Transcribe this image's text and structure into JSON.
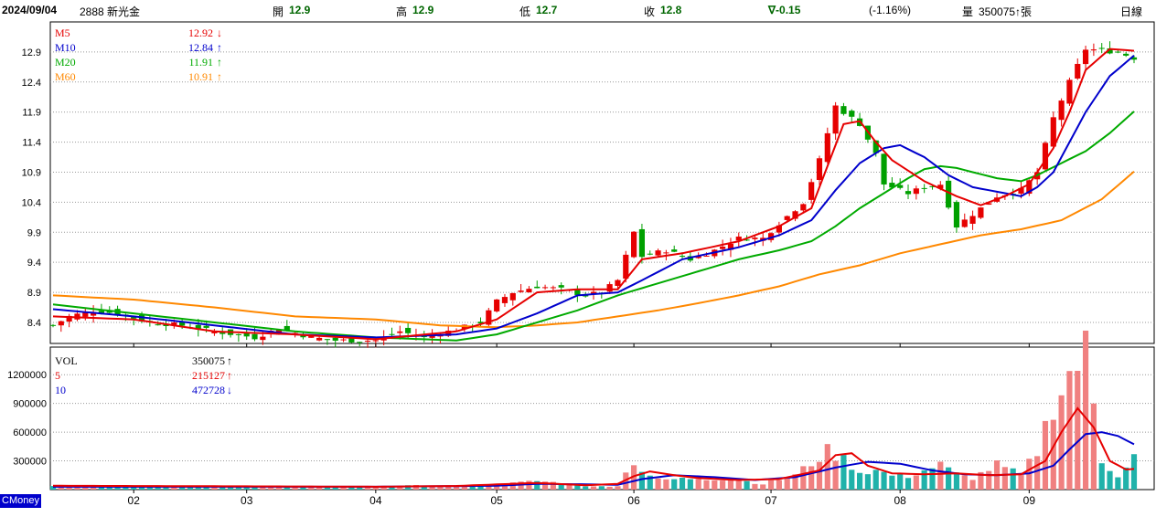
{
  "header": {
    "date": "2024/09/04",
    "stock": "2888 新光金",
    "open_label": "開",
    "open": "12.9",
    "high_label": "高",
    "high": "12.9",
    "low_label": "低",
    "low": "12.7",
    "close_label": "收",
    "close": "12.8",
    "change": "∇-0.15",
    "change_pct": "(-1.16%)",
    "volume_label": "量",
    "volume": "350075↑張",
    "period": "日線"
  },
  "badge": "CMoney",
  "colors": {
    "up": "#e60000",
    "down": "#00a000",
    "ma5": "#e60000",
    "ma10": "#0000cc",
    "ma20": "#00aa00",
    "ma60": "#ff8800",
    "vol_up": "#f08080",
    "vol_down": "#20b2aa"
  },
  "chart_data": {
    "type": "candlestick",
    "price_ticks": [
      "12.9",
      "12.4",
      "11.9",
      "11.4",
      "10.9",
      "10.4",
      "9.9",
      "9.4",
      "8.9",
      "8.4"
    ],
    "price_tick_values": [
      12.9,
      12.4,
      11.9,
      11.4,
      10.9,
      10.4,
      9.9,
      9.4,
      8.9,
      8.4
    ],
    "volume_ticks": [
      "1200000",
      "900000",
      "600000",
      "300000"
    ],
    "volume_tick_values": [
      1200000,
      900000,
      600000,
      300000
    ],
    "month_labels": [
      "02",
      "03",
      "04",
      "05",
      "06",
      "07",
      "08",
      "09"
    ],
    "month_start_index": [
      10,
      24,
      40,
      55,
      72,
      89,
      105,
      121
    ],
    "ma_legend": [
      {
        "name": "M5",
        "value": "12.92",
        "arrow": "↓"
      },
      {
        "name": "M10",
        "value": "12.84",
        "arrow": "↑"
      },
      {
        "name": "M20",
        "value": "11.91",
        "arrow": "↑"
      },
      {
        "name": "M60",
        "value": "10.91",
        "arrow": "↑"
      }
    ],
    "vol_legend": [
      {
        "name": "VOL",
        "value": "350075",
        "arrow": "↑"
      },
      {
        "name": "5",
        "value": "215127",
        "arrow": "↑"
      },
      {
        "name": "10",
        "value": "472728",
        "arrow": "↓"
      }
    ],
    "close_anchors": [
      [
        0,
        8.35
      ],
      [
        2,
        8.5
      ],
      [
        5,
        8.6
      ],
      [
        8,
        8.55
      ],
      [
        12,
        8.4
      ],
      [
        16,
        8.35
      ],
      [
        20,
        8.25
      ],
      [
        25,
        8.15
      ],
      [
        28,
        8.3
      ],
      [
        32,
        8.15
      ],
      [
        35,
        8.1
      ],
      [
        40,
        8.1
      ],
      [
        43,
        8.25
      ],
      [
        46,
        8.15
      ],
      [
        49,
        8.25
      ],
      [
        53,
        8.4
      ],
      [
        55,
        8.75
      ],
      [
        57,
        8.9
      ],
      [
        60,
        9.0
      ],
      [
        63,
        8.95
      ],
      [
        66,
        8.85
      ],
      [
        68,
        8.9
      ],
      [
        70,
        9.1
      ],
      [
        71,
        9.5
      ],
      [
        72,
        9.9
      ],
      [
        73,
        9.5
      ],
      [
        76,
        9.6
      ],
      [
        79,
        9.45
      ],
      [
        82,
        9.6
      ],
      [
        85,
        9.8
      ],
      [
        88,
        9.8
      ],
      [
        90,
        10.05
      ],
      [
        93,
        10.4
      ],
      [
        95,
        11.1
      ],
      [
        97,
        12.0
      ],
      [
        99,
        11.8
      ],
      [
        100,
        11.7
      ],
      [
        102,
        11.2
      ],
      [
        103,
        10.7
      ],
      [
        106,
        10.55
      ],
      [
        108,
        10.65
      ],
      [
        110,
        10.7
      ],
      [
        112,
        10.0
      ],
      [
        114,
        10.2
      ],
      [
        117,
        10.5
      ],
      [
        120,
        10.6
      ],
      [
        122,
        10.9
      ],
      [
        124,
        11.8
      ],
      [
        126,
        12.4
      ],
      [
        128,
        12.95
      ],
      [
        132,
        12.9
      ],
      [
        134,
        12.8
      ]
    ],
    "ma_anchors": {
      "ma5": [
        [
          0,
          8.5
        ],
        [
          10,
          8.45
        ],
        [
          20,
          8.25
        ],
        [
          30,
          8.2
        ],
        [
          40,
          8.12
        ],
        [
          50,
          8.25
        ],
        [
          55,
          8.45
        ],
        [
          60,
          8.9
        ],
        [
          65,
          8.95
        ],
        [
          70,
          8.95
        ],
        [
          73,
          9.45
        ],
        [
          78,
          9.55
        ],
        [
          85,
          9.75
        ],
        [
          90,
          10.0
        ],
        [
          94,
          10.3
        ],
        [
          96,
          11.0
        ],
        [
          98,
          11.7
        ],
        [
          100,
          11.75
        ],
        [
          102,
          11.4
        ],
        [
          104,
          11.1
        ],
        [
          108,
          10.75
        ],
        [
          112,
          10.5
        ],
        [
          115,
          10.35
        ],
        [
          118,
          10.5
        ],
        [
          121,
          10.7
        ],
        [
          124,
          11.3
        ],
        [
          126,
          11.9
        ],
        [
          128,
          12.6
        ],
        [
          131,
          12.95
        ],
        [
          134,
          12.92
        ]
      ],
      "ma10": [
        [
          0,
          8.62
        ],
        [
          10,
          8.5
        ],
        [
          20,
          8.35
        ],
        [
          30,
          8.2
        ],
        [
          40,
          8.15
        ],
        [
          50,
          8.2
        ],
        [
          55,
          8.3
        ],
        [
          60,
          8.55
        ],
        [
          65,
          8.85
        ],
        [
          70,
          8.9
        ],
        [
          73,
          9.1
        ],
        [
          78,
          9.45
        ],
        [
          85,
          9.65
        ],
        [
          90,
          9.85
        ],
        [
          94,
          10.1
        ],
        [
          97,
          10.6
        ],
        [
          100,
          11.05
        ],
        [
          103,
          11.3
        ],
        [
          105,
          11.35
        ],
        [
          108,
          11.15
        ],
        [
          111,
          10.85
        ],
        [
          114,
          10.65
        ],
        [
          118,
          10.55
        ],
        [
          120,
          10.5
        ],
        [
          122,
          10.65
        ],
        [
          124,
          10.9
        ],
        [
          126,
          11.4
        ],
        [
          128,
          11.9
        ],
        [
          131,
          12.5
        ],
        [
          134,
          12.84
        ]
      ],
      "ma20": [
        [
          0,
          8.7
        ],
        [
          10,
          8.55
        ],
        [
          20,
          8.4
        ],
        [
          30,
          8.25
        ],
        [
          40,
          8.15
        ],
        [
          50,
          8.1
        ],
        [
          55,
          8.2
        ],
        [
          60,
          8.4
        ],
        [
          65,
          8.6
        ],
        [
          70,
          8.85
        ],
        [
          75,
          9.05
        ],
        [
          80,
          9.25
        ],
        [
          85,
          9.45
        ],
        [
          90,
          9.6
        ],
        [
          94,
          9.75
        ],
        [
          97,
          10.0
        ],
        [
          100,
          10.3
        ],
        [
          103,
          10.55
        ],
        [
          106,
          10.8
        ],
        [
          108,
          10.95
        ],
        [
          110,
          11.0
        ],
        [
          112,
          10.97
        ],
        [
          114,
          10.9
        ],
        [
          117,
          10.8
        ],
        [
          120,
          10.75
        ],
        [
          122,
          10.85
        ],
        [
          125,
          11.05
        ],
        [
          128,
          11.25
        ],
        [
          131,
          11.55
        ],
        [
          134,
          11.91
        ]
      ],
      "ma60": [
        [
          0,
          8.85
        ],
        [
          10,
          8.78
        ],
        [
          20,
          8.65
        ],
        [
          30,
          8.5
        ],
        [
          40,
          8.45
        ],
        [
          48,
          8.35
        ],
        [
          55,
          8.32
        ],
        [
          60,
          8.35
        ],
        [
          65,
          8.4
        ],
        [
          70,
          8.5
        ],
        [
          75,
          8.6
        ],
        [
          80,
          8.72
        ],
        [
          85,
          8.85
        ],
        [
          90,
          9.0
        ],
        [
          95,
          9.2
        ],
        [
          100,
          9.35
        ],
        [
          105,
          9.55
        ],
        [
          110,
          9.7
        ],
        [
          115,
          9.85
        ],
        [
          120,
          9.95
        ],
        [
          125,
          10.1
        ],
        [
          130,
          10.45
        ],
        [
          134,
          10.91
        ]
      ]
    },
    "volume_anchors": [
      [
        0,
        40000
      ],
      [
        20,
        30000
      ],
      [
        40,
        30000
      ],
      [
        45,
        40000
      ],
      [
        50,
        30000
      ],
      [
        55,
        50000
      ],
      [
        60,
        90000
      ],
      [
        64,
        60000
      ],
      [
        67,
        30000
      ],
      [
        70,
        40000
      ],
      [
        72,
        300000
      ],
      [
        73,
        200000
      ],
      [
        75,
        100000
      ],
      [
        80,
        120000
      ],
      [
        85,
        100000
      ],
      [
        88,
        60000
      ],
      [
        92,
        150000
      ],
      [
        96,
        400000
      ],
      [
        98,
        320000
      ],
      [
        100,
        180000
      ],
      [
        102,
        200000
      ],
      [
        104,
        150000
      ],
      [
        106,
        140000
      ],
      [
        110,
        260000
      ],
      [
        112,
        160000
      ],
      [
        114,
        120000
      ],
      [
        117,
        260000
      ],
      [
        120,
        150000
      ],
      [
        122,
        400000
      ],
      [
        124,
        900000
      ],
      [
        126,
        1200000
      ],
      [
        128,
        1450000
      ],
      [
        130,
        300000
      ],
      [
        132,
        150000
      ],
      [
        134,
        350075
      ]
    ],
    "vol_ma_anchors": {
      "ma5": [
        [
          0,
          40000
        ],
        [
          20,
          35000
        ],
        [
          40,
          30000
        ],
        [
          50,
          38000
        ],
        [
          60,
          70000
        ],
        [
          66,
          45000
        ],
        [
          70,
          60000
        ],
        [
          72,
          140000
        ],
        [
          74,
          190000
        ],
        [
          77,
          150000
        ],
        [
          80,
          120000
        ],
        [
          85,
          100000
        ],
        [
          90,
          110000
        ],
        [
          95,
          200000
        ],
        [
          97,
          360000
        ],
        [
          99,
          380000
        ],
        [
          101,
          250000
        ],
        [
          104,
          170000
        ],
        [
          108,
          160000
        ],
        [
          112,
          170000
        ],
        [
          116,
          150000
        ],
        [
          120,
          160000
        ],
        [
          123,
          300000
        ],
        [
          125,
          600000
        ],
        [
          127,
          850000
        ],
        [
          129,
          650000
        ],
        [
          131,
          300000
        ],
        [
          133,
          210000
        ],
        [
          134,
          215127
        ]
      ],
      "vol_ma10": [
        [
          0,
          30000
        ],
        [
          20,
          30000
        ],
        [
          40,
          30000
        ],
        [
          55,
          40000
        ],
        [
          60,
          60000
        ],
        [
          66,
          55000
        ],
        [
          70,
          50000
        ],
        [
          73,
          110000
        ],
        [
          77,
          150000
        ],
        [
          82,
          130000
        ],
        [
          87,
          100000
        ],
        [
          92,
          130000
        ],
        [
          97,
          230000
        ],
        [
          101,
          290000
        ],
        [
          105,
          270000
        ],
        [
          109,
          200000
        ],
        [
          113,
          160000
        ],
        [
          117,
          150000
        ],
        [
          121,
          170000
        ],
        [
          124,
          250000
        ],
        [
          126,
          420000
        ],
        [
          128,
          580000
        ],
        [
          130,
          600000
        ],
        [
          132,
          560000
        ],
        [
          134,
          472728
        ]
      ]
    },
    "total_bars": 135,
    "ylim_price": [
      8.05,
      13.4
    ],
    "ylim_volume": [
      0,
      1450000
    ]
  }
}
